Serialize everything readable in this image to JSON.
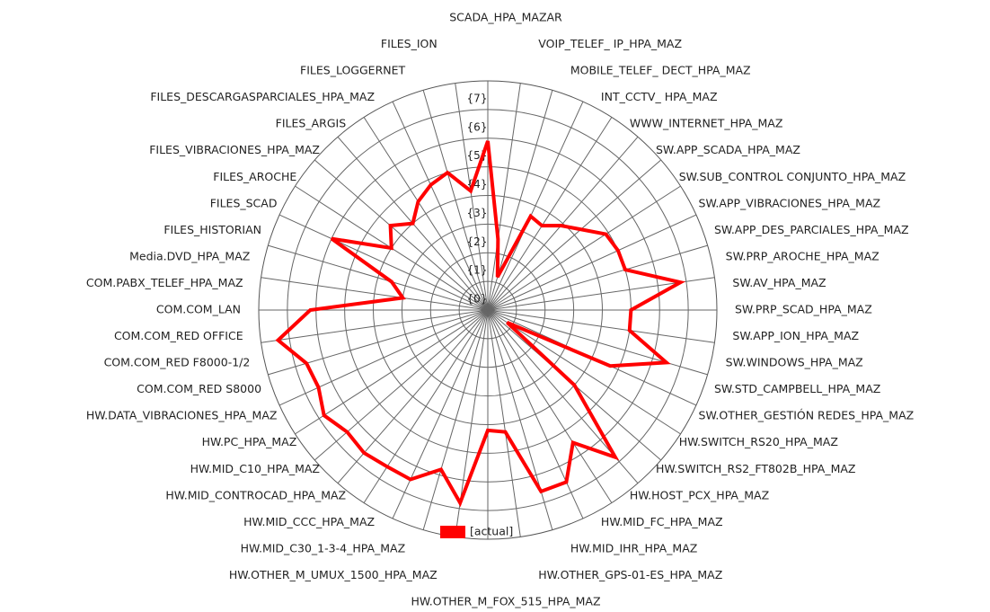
{
  "chart_data": {
    "type": "radar",
    "categories": [
      "SCADA_HPA_MAZAR",
      "VOIP_TELEF_ IP_HPA_MAZ",
      "MOBILE_TELEF_ DECT_HPA_MAZ",
      "INT_CCTV_ HPA_MAZ",
      "WWW_INTERNET_HPA_MAZ",
      "SW.APP_SCADA_HPA_MAZ",
      "SW.SUB_CONTROL CONJUNTO_HPA_MAZ",
      "SW.APP_VIBRACIONES_HPA_MAZ",
      "SW.APP_DES_PARCIALES_HPA_MAZ",
      "SW.PRP_AROCHE_HPA_MAZ",
      "SW.AV_HPA_MAZ",
      "SW.PRP_SCAD_HPA_MAZ",
      "SW.APP_ION_HPA_MAZ",
      "SW.WINDOWS_HPA_MAZ",
      "SW.STD_CAMPBELL_HPA_MAZ",
      "SW.OTHER_GESTIÓN REDES_HPA_MAZ",
      "HW.SWITCH_RS20_HPA_MAZ",
      "HW.SWITCH_RS2_FT802B_HPA_MAZ",
      "HW.HOST_PCX_HPA_MAZ",
      "HW.MID_FC_HPA_MAZ",
      "HW.MID_IHR_HPA_MAZ",
      "HW.OTHER_GPS-01-ES_HPA_MAZ",
      "HW.OTHER_M_FOX_515_HPA_MAZ",
      "HW.OTHER_M_UMUX_1500_HPA_MAZ",
      "HW.MID_C30_1-3-4_HPA_MAZ",
      "HW.MID_CCC_HPA_MAZ",
      "HW.MID_CONTROCAD_HPA_MAZ",
      "HW.MID_C10_HPA_MAZ",
      "HW.PC_HPA_MAZ",
      "HW.DATA_VIBRACIONES_HPA_MAZ",
      "COM.COM_RED S8000",
      "COM.COM_RED F8000-1/2",
      "COM.COM_RED OFFICE",
      "COM.COM_LAN",
      "COM.PABX_TELEF_HPA_MAZ",
      "Media.DVD_HPA_MAZ",
      "FILES_HISTORIAN",
      "FILES_SCAD",
      "FILES_AROCHE",
      "FILES_VIBRACIONES_HPA_MAZ",
      "FILES_ARGIS",
      "FILES_DESCARGASPARCIALES_HPA_MAZ",
      "FILES_LOGGERNET",
      "FILES_ION"
    ],
    "series": [
      {
        "name": "[actual]",
        "color": "#ff0000",
        "values": [
          5.9,
          2.5,
          1.2,
          3.6,
          3.5,
          3.9,
          4.3,
          4.9,
          5.0,
          5.0,
          6.8,
          5.0,
          5.0,
          6.5,
          4.7,
          0.8,
          4.0,
          6.8,
          5.5,
          6.6,
          6.6,
          4.3,
          4.2,
          6.8,
          5.8,
          6.5,
          6.5,
          6.6,
          6.5,
          6.8,
          6.5,
          6.6,
          7.4,
          6.2,
          3.0,
          3.5,
          6.0,
          4.0,
          4.5,
          4.0,
          4.5,
          4.8,
          5.0,
          4.2
        ]
      }
    ],
    "ylim": [
      0,
      8
    ],
    "yticks": [
      {
        "value": 0,
        "label": "{0}"
      },
      {
        "value": 1,
        "label": "{1}"
      },
      {
        "value": 2,
        "label": "{2}"
      },
      {
        "value": 3,
        "label": "{3}"
      },
      {
        "value": 4,
        "label": "{4}"
      },
      {
        "value": 5,
        "label": "{5}"
      },
      {
        "value": 6,
        "label": "{6}"
      },
      {
        "value": 7,
        "label": "{7}"
      }
    ],
    "grid": true,
    "legend": "bottom"
  }
}
